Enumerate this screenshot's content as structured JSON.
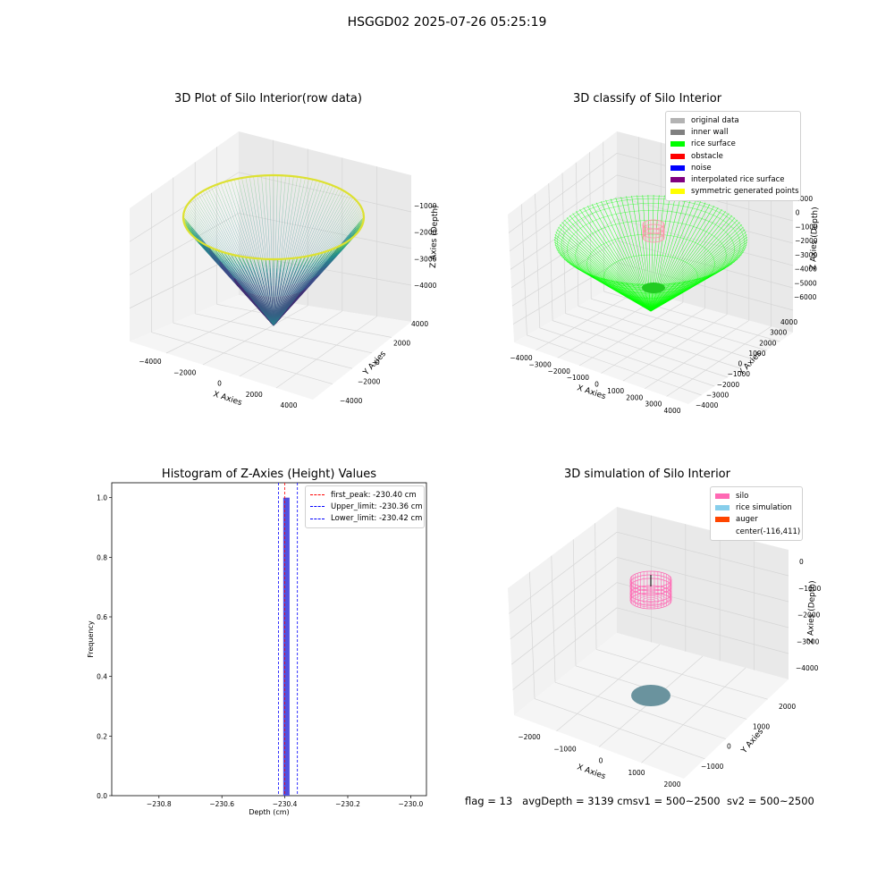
{
  "figure": {
    "suptitle": "HSGGD02 2025-07-26 05:25:19",
    "footer": {
      "flag": "flag = 13",
      "avg": "avgDepth = 3139 cmsv1 = 500~2500",
      "sv2": "sv2 = 500~2500"
    }
  },
  "panels": {
    "raw": {
      "title": "3D Plot of Silo Interior(row data)",
      "xlabel": "X Axies",
      "ylabel": "Y Axies",
      "zlabel": "Z Axies (Depth)",
      "xticks": [
        "−4000",
        "−2000",
        "0",
        "2000",
        "4000"
      ],
      "yticks": [
        "−4000",
        "−2000",
        "0",
        "2000",
        "4000"
      ],
      "zticks": [
        "−1000",
        "−2000",
        "−3000",
        "−4000"
      ]
    },
    "classify": {
      "title": "3D classify of Silo Interior",
      "xlabel": "X Axies",
      "ylabel": "Y Axies",
      "zlabel": "Z Axies (Depth)",
      "xticks": [
        "−4000",
        "−3000",
        "−2000",
        "−1000",
        "0",
        "1000",
        "2000",
        "3000",
        "4000"
      ],
      "yticks": [
        "4000",
        "3000",
        "2000",
        "1000",
        "0",
        "−1000",
        "−2000",
        "−3000",
        "−4000"
      ],
      "zticks": [
        "1000",
        "0",
        "−1000",
        "−2000",
        "−3000",
        "−4000",
        "−5000",
        "−6000"
      ],
      "legend": [
        {
          "label": "original data",
          "color": "#b3b3b3"
        },
        {
          "label": "inner wall",
          "color": "#808080"
        },
        {
          "label": "rice surface",
          "color": "#00ff00"
        },
        {
          "label": "obstacle",
          "color": "#ff0000"
        },
        {
          "label": "noise",
          "color": "#0000ff"
        },
        {
          "label": "interpolated rice surface",
          "color": "#800080"
        },
        {
          "label": "symmetric generated points",
          "color": "#ffff00"
        }
      ],
      "z_tick_partial": "00"
    },
    "hist": {
      "title": "Histogram of Z-Axies (Height) Values",
      "legend": [
        {
          "label": "first_peak: -230.40 cm",
          "color": "#ff0000"
        },
        {
          "label": "Upper_limit: -230.36 cm",
          "color": "#0000ff"
        },
        {
          "label": "Lower_limit: -230.42 cm",
          "color": "#0000ff"
        }
      ]
    },
    "sim": {
      "title": "3D simulation of Silo Interior",
      "xlabel": "X Axies",
      "ylabel": "Y Axies",
      "zlabel": "Z Axies (Depth)",
      "xticks": [
        "−2000",
        "−1000",
        "0",
        "1000",
        "2000"
      ],
      "yticks": [
        "2000",
        "1000",
        "0",
        "−1000"
      ],
      "zticks": [
        "0",
        "−1000",
        "−2000",
        "−3000",
        "−4000"
      ],
      "legend": [
        {
          "label": "silo",
          "color": "#ff69b4"
        },
        {
          "label": "rice simulation",
          "color": "#87ceeb"
        },
        {
          "label": "auger",
          "color": "#ff4500"
        },
        {
          "label": "center(-116,411)",
          "color": ""
        }
      ]
    }
  },
  "chart_data": [
    {
      "type": "scatter",
      "title": "3D Plot of Silo Interior(row data)",
      "xlabel": "X Axies",
      "ylabel": "Y Axies",
      "zlabel": "Z Axies (Depth)",
      "xlim": [
        -4500,
        4500
      ],
      "ylim": [
        -4500,
        4500
      ],
      "zlim": [
        -4800,
        -600
      ],
      "description_colormap": "viridis",
      "surface": {
        "shape": "paraboloid bowl",
        "rim_radius": 4600,
        "rim_z": -1000,
        "bottom_z": -4600
      }
    },
    {
      "type": "scatter",
      "title": "3D classify of Silo Interior",
      "xlabel": "X Axies",
      "ylabel": "Y Axies",
      "zlabel": "Z Axies (Depth)",
      "xlim": [
        -4200,
        4200
      ],
      "ylim": [
        -4200,
        4200
      ],
      "zlim": [
        -6500,
        1500
      ],
      "series": [
        {
          "name": "rice surface",
          "shape": "bowl",
          "rim_radius": 4000,
          "rim_z": -1000,
          "bottom_z": -5400
        },
        {
          "name": "obstacle",
          "shape": "small cylinder",
          "center": [
            -116,
            411
          ],
          "radius": 550,
          "z_top": 0,
          "z_bottom": -1000
        }
      ]
    },
    {
      "type": "bar",
      "title": "Histogram of Z-Axies (Height) Values",
      "xlabel": "Depth (cm)",
      "ylabel": "Frequency",
      "xlim": [
        -230.95,
        -229.95
      ],
      "ylim": [
        0,
        1.05
      ],
      "xticks": [
        -230.8,
        -230.6,
        -230.4,
        -230.2,
        -230.0
      ],
      "yticks": [
        0.0,
        0.2,
        0.4,
        0.6,
        0.8,
        1.0
      ],
      "bins": [
        {
          "x0": -230.405,
          "x1": -230.385,
          "frequency": 1.0
        }
      ],
      "vlines": [
        {
          "name": "first_peak: -230.40 cm",
          "x": -230.4,
          "color": "#ff0000"
        },
        {
          "name": "Upper_limit: -230.36 cm",
          "x": -230.36,
          "color": "#0000ff"
        },
        {
          "name": "Lower_limit: -230.42 cm",
          "x": -230.42,
          "color": "#0000ff"
        }
      ]
    },
    {
      "type": "scatter",
      "title": "3D simulation of Silo Interior",
      "xlabel": "X Axies",
      "ylabel": "Y Axies",
      "zlabel": "Z Axies (Depth)",
      "xlim": [
        -2500,
        2500
      ],
      "ylim": [
        -1500,
        2500
      ],
      "zlim": [
        -4500,
        300
      ],
      "series": [
        {
          "name": "silo",
          "shape": "cylinder",
          "center": [
            -116,
            411
          ],
          "radius": 500,
          "z_top": -400,
          "z_bottom": -1200
        },
        {
          "name": "rice simulation",
          "shape": "disk",
          "z": -4300,
          "radius": 500
        },
        {
          "name": "auger",
          "shape": "none"
        }
      ]
    }
  ]
}
